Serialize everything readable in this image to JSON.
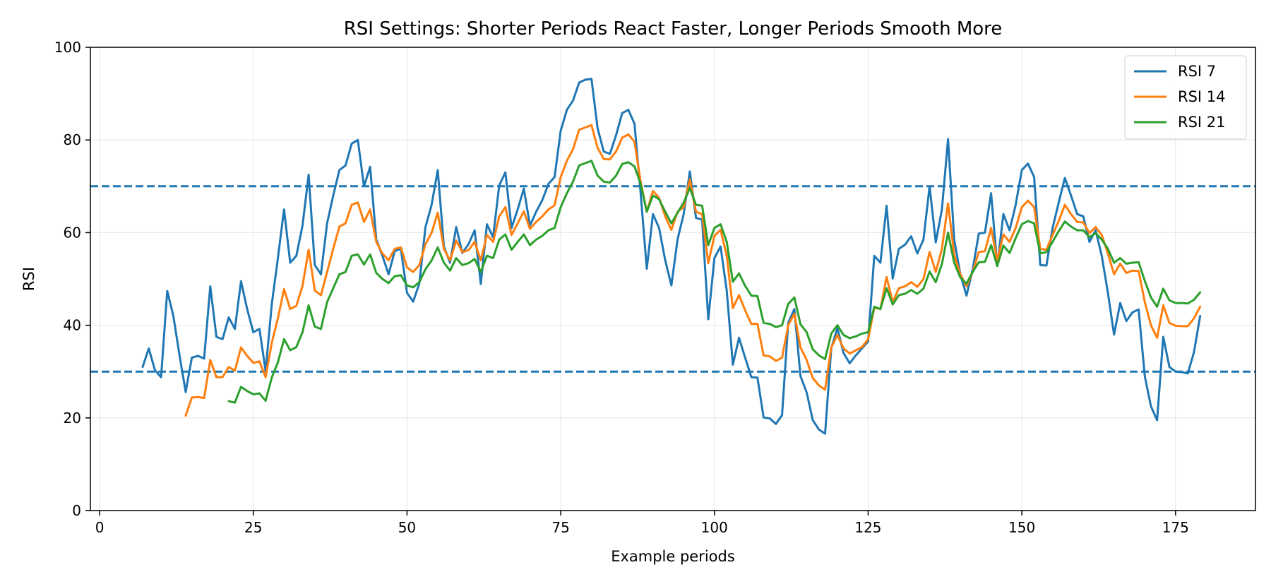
{
  "chart_data": {
    "type": "line",
    "title": "RSI Settings: Shorter Periods React Faster, Longer Periods Smooth More",
    "xlabel": "Example periods",
    "ylabel": "RSI",
    "xlim": [
      -1.5,
      188
    ],
    "ylim": [
      0,
      100
    ],
    "xticks": [
      0,
      25,
      50,
      75,
      100,
      125,
      150,
      175
    ],
    "yticks": [
      0,
      20,
      40,
      60,
      80,
      100
    ],
    "grid": true,
    "legend_position": "top-right",
    "reference_lines": [
      {
        "y": 70,
        "style": "dashed",
        "color": "#1f77b4"
      },
      {
        "y": 30,
        "style": "dashed",
        "color": "#1f77b4"
      }
    ],
    "series": [
      {
        "name": "RSI 7",
        "color": "#1f77b4",
        "x_start": 7,
        "values": [
          31.0,
          35.0,
          30.3,
          28.8,
          47.4,
          42.0,
          33.5,
          25.6,
          33.0,
          33.4,
          32.8,
          48.4,
          37.5,
          37.0,
          41.7,
          39.2,
          49.5,
          43.5,
          38.5,
          39.2,
          30.1,
          44.5,
          54.5,
          65.0,
          53.5,
          55.0,
          61.5,
          72.5,
          53.0,
          51.0,
          62.0,
          68.0,
          73.5,
          74.5,
          79.2,
          80.0,
          70.0,
          74.2,
          58.5,
          55.0,
          51.0,
          56.0,
          56.5,
          47.0,
          45.1,
          49.0,
          61.2,
          66.0,
          73.5,
          57.0,
          53.5,
          61.2,
          55.6,
          57.5,
          60.5,
          48.9,
          61.8,
          59.0,
          70.2,
          73.0,
          61.0,
          65.0,
          69.5,
          61.5,
          64.5,
          67.0,
          70.5,
          72.0,
          82.0,
          86.5,
          88.5,
          92.4,
          93.0,
          93.2,
          82.5,
          77.5,
          77.0,
          81.0,
          85.8,
          86.5,
          83.5,
          68.5,
          52.2,
          64.0,
          61.0,
          54.0,
          48.6,
          58.5,
          64.0,
          73.2,
          63.2,
          62.8,
          41.3,
          54.5,
          57.0,
          47.5,
          31.5,
          37.3,
          33.0,
          28.8,
          28.7,
          20.1,
          19.9,
          18.7,
          20.6,
          40.5,
          43.5,
          29.0,
          25.5,
          19.5,
          17.5,
          16.6,
          35.0,
          39.4,
          34.0,
          31.8,
          33.5,
          35.0,
          36.5,
          55.0,
          53.5,
          65.8,
          50.1,
          56.5,
          57.4,
          59.2,
          55.5,
          58.5,
          70.0,
          57.9,
          65.0,
          80.2,
          58.5,
          51.0,
          46.4,
          52.0,
          59.8,
          60.0,
          68.5,
          52.8,
          64.0,
          60.5,
          66.0,
          73.5,
          74.9,
          72.0,
          53.0,
          52.9,
          61.0,
          66.5,
          71.8,
          68.0,
          64.0,
          63.5,
          58.0,
          60.5,
          55.0,
          47.0,
          38.0,
          44.8,
          40.9,
          42.8,
          43.4,
          29.0,
          22.5,
          19.5,
          37.5,
          31.0,
          30.0,
          29.9,
          29.6,
          34.2,
          42.0
        ]
      },
      {
        "name": "RSI 14",
        "color": "#ff7f0e",
        "x_start": 14,
        "values": [
          20.5,
          24.4,
          24.5,
          24.3,
          32.5,
          28.8,
          28.8,
          31.0,
          30.2,
          35.2,
          33.4,
          31.9,
          32.2,
          28.8,
          36.2,
          41.5,
          47.8,
          43.5,
          44.2,
          48.5,
          56.3,
          47.5,
          46.5,
          51.5,
          56.5,
          61.3,
          62.0,
          66.0,
          66.5,
          62.3,
          65.0,
          58.0,
          55.5,
          54.0,
          56.5,
          56.8,
          52.5,
          51.5,
          53.0,
          57.5,
          60.0,
          64.3,
          56.5,
          54.0,
          58.3,
          55.8,
          56.2,
          58.0,
          54.0,
          59.5,
          58.0,
          63.5,
          65.5,
          59.5,
          62.0,
          64.6,
          60.8,
          62.3,
          63.5,
          65.0,
          65.9,
          72.0,
          75.5,
          78.0,
          82.2,
          82.7,
          83.2,
          78.3,
          75.9,
          75.8,
          77.5,
          80.5,
          81.2,
          79.6,
          71.0,
          64.5,
          69.0,
          67.5,
          63.5,
          60.6,
          64.5,
          65.5,
          71.5,
          64.5,
          64.0,
          53.4,
          59.3,
          60.6,
          55.0,
          43.7,
          46.5,
          43.2,
          40.3,
          40.3,
          33.5,
          33.3,
          32.3,
          33.0,
          40.0,
          42.5,
          35.2,
          32.5,
          28.6,
          27.0,
          26.1,
          35.2,
          37.9,
          35.0,
          33.9,
          34.6,
          35.3,
          37.0,
          43.8,
          43.5,
          50.4,
          45.0,
          48.0,
          48.4,
          49.3,
          48.3,
          50.0,
          55.8,
          51.5,
          56.5,
          66.3,
          55.2,
          51.0,
          48.4,
          51.5,
          55.8,
          56.0,
          61.0,
          54.0,
          59.6,
          58.0,
          61.0,
          65.5,
          66.9,
          65.5,
          56.5,
          56.3,
          59.5,
          62.5,
          66.0,
          64.0,
          62.3,
          62.2,
          59.9,
          61.2,
          59.5,
          55.5,
          51.0,
          53.3,
          51.3,
          51.8,
          51.7,
          45.0,
          40.0,
          37.3,
          44.3,
          40.5,
          39.9,
          39.8,
          39.8,
          41.5,
          44.0
        ]
      },
      {
        "name": "RSI 21",
        "color": "#2ca02c",
        "x_start": 21,
        "values": [
          23.6,
          23.3,
          26.7,
          25.8,
          25.1,
          25.3,
          23.7,
          28.7,
          32.0,
          37.0,
          34.6,
          35.3,
          38.5,
          44.3,
          39.7,
          39.2,
          45.0,
          48.0,
          51.0,
          51.5,
          55.0,
          55.3,
          53.1,
          55.3,
          51.3,
          50.0,
          49.1,
          50.6,
          50.8,
          48.6,
          48.2,
          49.3,
          52.1,
          54.0,
          56.8,
          53.5,
          51.8,
          54.5,
          53.0,
          53.4,
          54.3,
          51.5,
          55.0,
          54.5,
          58.5,
          59.6,
          56.3,
          58.0,
          59.6,
          57.3,
          58.5,
          59.3,
          60.5,
          61.0,
          65.5,
          68.5,
          71.0,
          74.5,
          75.0,
          75.5,
          72.3,
          71.0,
          70.8,
          72.3,
          74.8,
          75.2,
          74.3,
          70.5,
          64.5,
          68.0,
          67.2,
          64.5,
          62.0,
          64.3,
          66.5,
          69.6,
          66.0,
          65.8,
          57.3,
          61.0,
          61.8,
          58.0,
          49.4,
          51.2,
          48.5,
          46.4,
          46.3,
          40.5,
          40.3,
          39.6,
          40.0,
          44.6,
          46.0,
          40.2,
          38.5,
          34.8,
          33.5,
          32.7,
          38.2,
          40.0,
          37.9,
          37.2,
          37.6,
          38.2,
          38.5,
          44.0,
          43.5,
          48.0,
          44.5,
          46.5,
          46.8,
          47.6,
          46.8,
          47.9,
          51.6,
          49.3,
          53.2,
          60.0,
          53.5,
          50.3,
          49.0,
          51.5,
          53.6,
          53.7,
          57.3,
          52.8,
          57.2,
          55.6,
          58.8,
          61.8,
          62.5,
          62.0,
          55.5,
          55.8,
          58.0,
          60.3,
          62.4,
          61.3,
          60.5,
          60.5,
          59.0,
          59.9,
          58.5,
          56.5,
          53.5,
          54.5,
          53.3,
          53.5,
          53.6,
          49.6,
          46.0,
          44.0,
          47.9,
          45.4,
          44.8,
          44.8,
          44.7,
          45.5,
          47.1
        ]
      }
    ]
  }
}
